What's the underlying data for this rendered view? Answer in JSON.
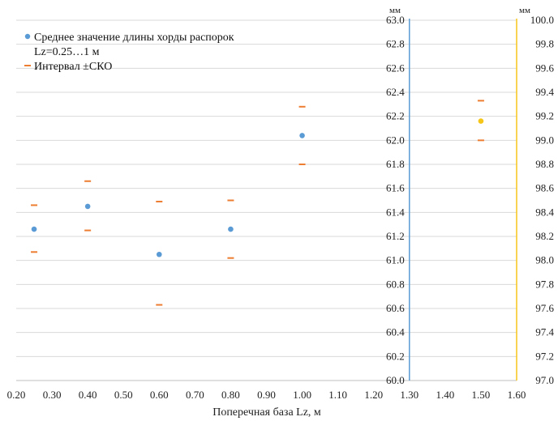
{
  "chart_data": {
    "type": "scatter",
    "xlabel": "Поперечная база Lz, м",
    "x_ticks": [
      "0.20",
      "0.30",
      "0.40",
      "0.50",
      "0.60",
      "0.70",
      "0.80",
      "0.90",
      "1.00",
      "1.10",
      "1.20",
      "1.30",
      "1.40",
      "1.50",
      "1.60"
    ],
    "xlim": [
      0.2,
      1.6
    ],
    "left_axis": {
      "unit": "мм",
      "ylim": [
        60.0,
        63.0
      ],
      "ticks": [
        "60.0",
        "60.2",
        "60.4",
        "60.6",
        "60.8",
        "61.0",
        "61.2",
        "61.4",
        "61.6",
        "61.8",
        "62.0",
        "62.2",
        "62.4",
        "62.6",
        "62.8",
        "63.0"
      ],
      "position_x": 1.3
    },
    "right_axis": {
      "unit": "мм",
      "ylim": [
        97.0,
        100.0
      ],
      "ticks": [
        "97.0",
        "97.2",
        "97.4",
        "97.6",
        "97.8",
        "98.0",
        "98.2",
        "98.4",
        "98.6",
        "98.8",
        "99.0",
        "99.2",
        "99.4",
        "99.6",
        "99.8",
        "100.0"
      ],
      "position_x": 1.6
    },
    "series": [
      {
        "name": "Среднее значение длины хорды распорок",
        "name_line2": "Lz=0.25…1  м",
        "axis": "left",
        "color": "#5B9BD5",
        "marker": "circle",
        "x": [
          0.25,
          0.4,
          0.6,
          0.8,
          1.0
        ],
        "y": [
          61.26,
          61.45,
          61.05,
          61.26,
          62.04
        ]
      },
      {
        "name": "Интервал ±СКО",
        "axis": "left",
        "color": "#ED7D31",
        "marker": "dash",
        "x": [
          0.25,
          0.4,
          0.6,
          0.8,
          1.0
        ],
        "upper": [
          61.46,
          61.66,
          61.49,
          61.5,
          62.28
        ],
        "lower": [
          61.07,
          61.25,
          60.63,
          61.02,
          61.8
        ]
      },
      {
        "axis": "right",
        "color": "#F5C518",
        "marker": "circle",
        "x": [
          1.5
        ],
        "y": [
          99.16
        ]
      },
      {
        "axis": "right",
        "color": "#ED7D31",
        "marker": "dash",
        "x": [
          1.5
        ],
        "upper": [
          99.33
        ],
        "lower": [
          99.0
        ]
      }
    ],
    "grid": "horizontal",
    "legend_position": "top-left",
    "colors": {
      "mean": "#5B9BD5",
      "interval": "#ED7D31",
      "right_point": "#F5C518",
      "left_axis_line": "#5B9BD5",
      "right_axis_line": "#F5C518",
      "grid": "#D9D9D9"
    }
  }
}
